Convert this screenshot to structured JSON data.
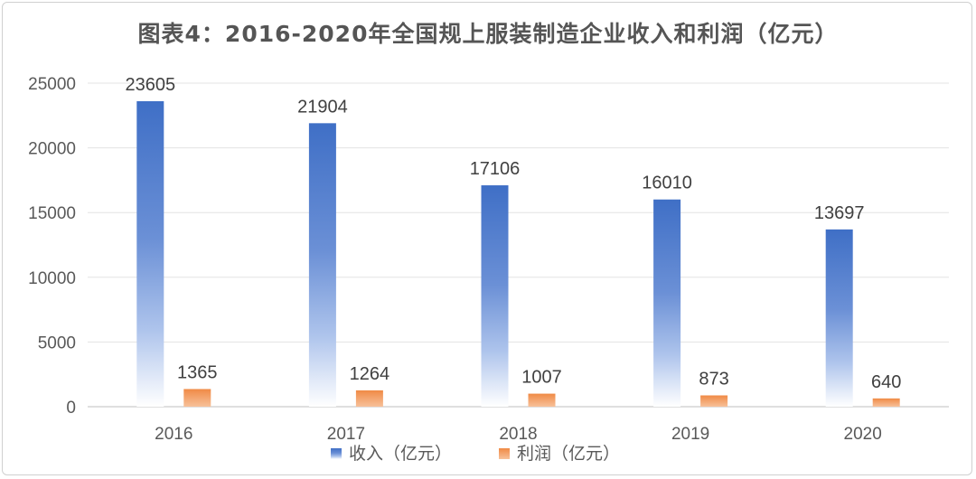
{
  "chart_data": {
    "type": "bar",
    "title": "图表4：2016-2020年全国规上服装制造企业收入和利润（亿元）",
    "categories": [
      "2016",
      "2017",
      "2018",
      "2019",
      "2020"
    ],
    "series": [
      {
        "name": "收入（亿元）",
        "values": [
          23605,
          21904,
          17106,
          16010,
          13697
        ],
        "color": "#4472C4"
      },
      {
        "name": "利润（亿元）",
        "values": [
          1365,
          1264,
          1007,
          873,
          640
        ],
        "color": "#ED7D31"
      }
    ],
    "ylim": [
      0,
      25000
    ],
    "yticks": [
      0,
      5000,
      10000,
      15000,
      20000,
      25000
    ],
    "grid": true,
    "legend": "bottom"
  }
}
